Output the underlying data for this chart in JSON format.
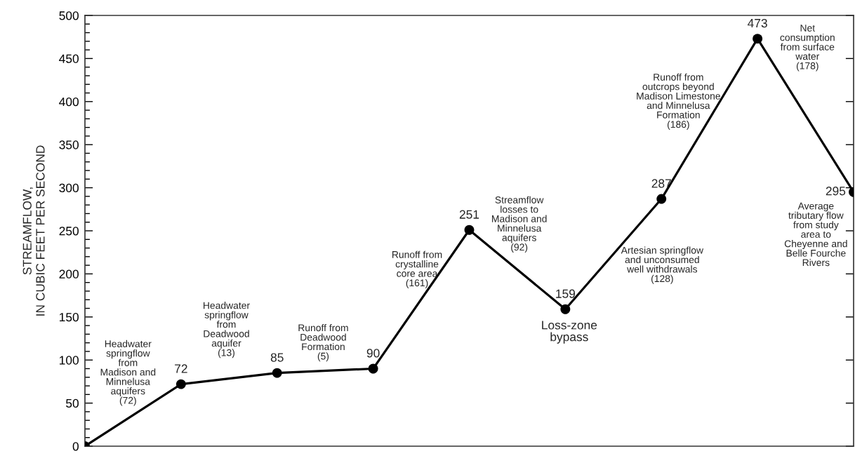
{
  "chart_data": {
    "type": "line",
    "ylabel": "STREAMFLOW,\nIN CUBIC FEET PER SECOND",
    "categories": [
      null,
      null,
      null,
      null,
      null,
      null,
      null,
      null,
      null
    ],
    "series": [
      {
        "color": "#000000",
        "values": [
          0,
          72,
          85,
          90,
          251,
          159,
          287,
          473,
          295
        ],
        "value_labels": [
          null,
          "72",
          "85",
          "90",
          "251",
          "159",
          "287",
          "473",
          "295"
        ]
      }
    ],
    "ylim": [
      0,
      500
    ],
    "yticks": [
      0,
      50,
      100,
      150,
      200,
      250,
      300,
      350,
      400,
      450,
      500
    ],
    "tick_labels": "y",
    "marker": "circle",
    "line_style": "solid",
    "grid": false,
    "legend": false,
    "annotations": [
      "Headwater\nspringflow\nfrom\nMadison and\nMinnelusa\naquifers\n(72)",
      "Headwater\nspringflow\nfrom\nDeadwood\naquifer\n(13)",
      "Runoff from\nDeadwood\nFormation\n(5)",
      "Runoff from\ncrystalline\ncore area\n(161)",
      "Streamflow\nlosses to\nMadison and\nMinnelusa\naquifers\n(92)",
      "Loss-zone\nbypass",
      "Artesian springflow\nand unconsumed\nwell withdrawals\n(128)",
      "Runoff from\noutcrops beyond\nMadison Limestone\nand Minnelusa\nFormation\n(186)",
      "Net\nconsumption\nfrom surface\nwater\n(178)",
      "Average\ntributary flow\nfrom study\narea to\nCheyenne and\nBelle Fourche\nRivers"
    ]
  }
}
